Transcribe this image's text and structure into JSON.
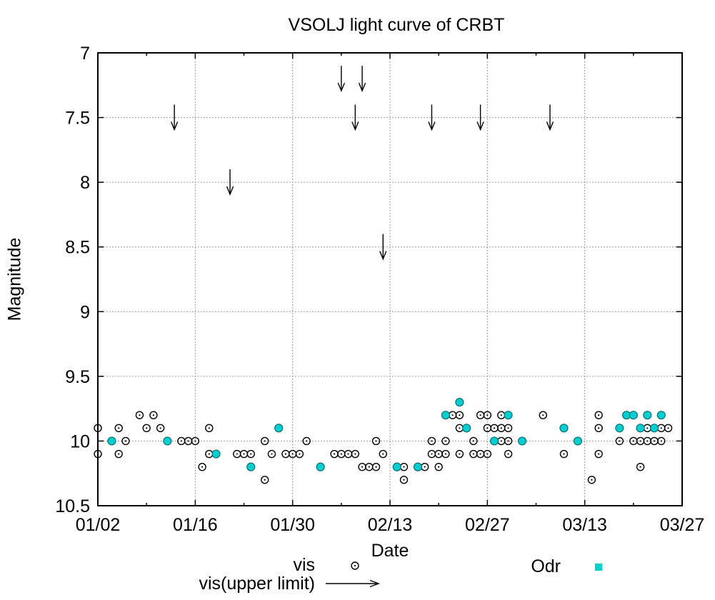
{
  "chart_data": {
    "type": "scatter",
    "title": "VSOLJ light curve of CRBT",
    "xlabel": "Date",
    "ylabel": "Magnitude",
    "x_tick_labels": [
      "01/02",
      "01/16",
      "01/30",
      "02/13",
      "02/27",
      "03/13",
      "03/27"
    ],
    "x_tick_days": [
      0,
      14,
      28,
      42,
      56,
      70,
      84
    ],
    "x_minor_tick_days": [
      7,
      21,
      35,
      49,
      63,
      77
    ],
    "y_ticks": [
      7,
      7.5,
      8,
      8.5,
      9,
      9.5,
      10,
      10.5
    ],
    "ylim": [
      7,
      10.5
    ],
    "y_axis_inverted": true,
    "grid": true,
    "legend_position": "below plot, two columns",
    "colors": {
      "vis": "#000000",
      "odr_fill": "#00CED1",
      "odr_edge": "#0b6f6f",
      "grid": "#808080",
      "background": "#ffffff"
    },
    "series": [
      {
        "name": "vis",
        "marker": "open-circle",
        "points": [
          [
            "01/02",
            9.9
          ],
          [
            "01/02",
            10.1
          ],
          [
            "01/05",
            9.9
          ],
          [
            "01/05",
            10.1
          ],
          [
            "01/06",
            10.0
          ],
          [
            "01/08",
            9.8
          ],
          [
            "01/09",
            9.9
          ],
          [
            "01/10",
            9.8
          ],
          [
            "01/11",
            9.9
          ],
          [
            "01/14",
            10.0
          ],
          [
            "01/15",
            10.0
          ],
          [
            "01/16",
            10.0
          ],
          [
            "01/17",
            10.2
          ],
          [
            "01/18",
            9.9
          ],
          [
            "01/18",
            10.1
          ],
          [
            "01/22",
            10.1
          ],
          [
            "01/23",
            10.1
          ],
          [
            "01/24",
            10.1
          ],
          [
            "01/26",
            10.0
          ],
          [
            "01/26",
            10.3
          ],
          [
            "01/27",
            10.1
          ],
          [
            "01/29",
            10.1
          ],
          [
            "01/30",
            10.1
          ],
          [
            "01/31",
            10.1
          ],
          [
            "02/01",
            10.0
          ],
          [
            "02/05",
            10.1
          ],
          [
            "02/06",
            10.1
          ],
          [
            "02/07",
            10.1
          ],
          [
            "02/08",
            10.1
          ],
          [
            "02/09",
            10.2
          ],
          [
            "02/10",
            10.2
          ],
          [
            "02/11",
            10.0
          ],
          [
            "02/11",
            10.2
          ],
          [
            "02/12",
            10.1
          ],
          [
            "02/15",
            10.2
          ],
          [
            "02/15",
            10.3
          ],
          [
            "02/18",
            10.2
          ],
          [
            "02/19",
            10.0
          ],
          [
            "02/19",
            10.1
          ],
          [
            "02/20",
            10.1
          ],
          [
            "02/20",
            10.2
          ],
          [
            "02/21",
            10.0
          ],
          [
            "02/21",
            10.1
          ],
          [
            "02/22",
            9.8
          ],
          [
            "02/23",
            9.8
          ],
          [
            "02/23",
            9.9
          ],
          [
            "02/23",
            10.1
          ],
          [
            "02/25",
            10.0
          ],
          [
            "02/25",
            10.1
          ],
          [
            "02/26",
            9.8
          ],
          [
            "02/26",
            10.1
          ],
          [
            "02/27",
            9.8
          ],
          [
            "02/27",
            9.9
          ],
          [
            "02/27",
            10.1
          ],
          [
            "02/28",
            9.9
          ],
          [
            "03/01",
            9.8
          ],
          [
            "03/01",
            9.9
          ],
          [
            "03/01",
            10.0
          ],
          [
            "03/02",
            9.9
          ],
          [
            "03/02",
            10.0
          ],
          [
            "03/02",
            10.1
          ],
          [
            "03/07",
            9.8
          ],
          [
            "03/10",
            10.1
          ],
          [
            "03/14",
            10.3
          ],
          [
            "03/15",
            9.8
          ],
          [
            "03/15",
            9.9
          ],
          [
            "03/15",
            10.1
          ],
          [
            "03/18",
            10.0
          ],
          [
            "03/20",
            10.0
          ],
          [
            "03/21",
            9.9
          ],
          [
            "03/21",
            10.0
          ],
          [
            "03/21",
            10.2
          ],
          [
            "03/22",
            9.9
          ],
          [
            "03/22",
            10.0
          ],
          [
            "03/23",
            10.0
          ],
          [
            "03/24",
            9.9
          ],
          [
            "03/24",
            10.0
          ],
          [
            "03/25",
            9.9
          ]
        ]
      },
      {
        "name": "Odr",
        "marker": "filled-cyan",
        "points": [
          [
            "01/04",
            10.0
          ],
          [
            "01/12",
            10.0
          ],
          [
            "01/19",
            10.1
          ],
          [
            "01/24",
            10.2
          ],
          [
            "01/28",
            9.9
          ],
          [
            "02/03",
            10.2
          ],
          [
            "02/14",
            10.2
          ],
          [
            "02/17",
            10.2
          ],
          [
            "02/21",
            9.8
          ],
          [
            "02/23",
            9.7
          ],
          [
            "02/24",
            9.9
          ],
          [
            "02/28",
            10.0
          ],
          [
            "03/02",
            9.8
          ],
          [
            "03/04",
            10.0
          ],
          [
            "03/10",
            9.9
          ],
          [
            "03/12",
            10.0
          ],
          [
            "03/18",
            9.9
          ],
          [
            "03/19",
            9.8
          ],
          [
            "03/20",
            9.8
          ],
          [
            "03/21",
            9.9
          ],
          [
            "03/22",
            9.8
          ],
          [
            "03/23",
            9.9
          ],
          [
            "03/24",
            9.8
          ]
        ]
      },
      {
        "name": "vis(upper limit)",
        "marker": "down-arrow",
        "points": [
          [
            "01/13",
            7.4
          ],
          [
            "01/21",
            7.9
          ],
          [
            "02/06",
            7.1
          ],
          [
            "02/08",
            7.4
          ],
          [
            "02/09",
            7.1
          ],
          [
            "02/12",
            8.4
          ],
          [
            "02/19",
            7.4
          ],
          [
            "02/26",
            7.4
          ],
          [
            "03/08",
            7.4
          ]
        ]
      }
    ]
  }
}
